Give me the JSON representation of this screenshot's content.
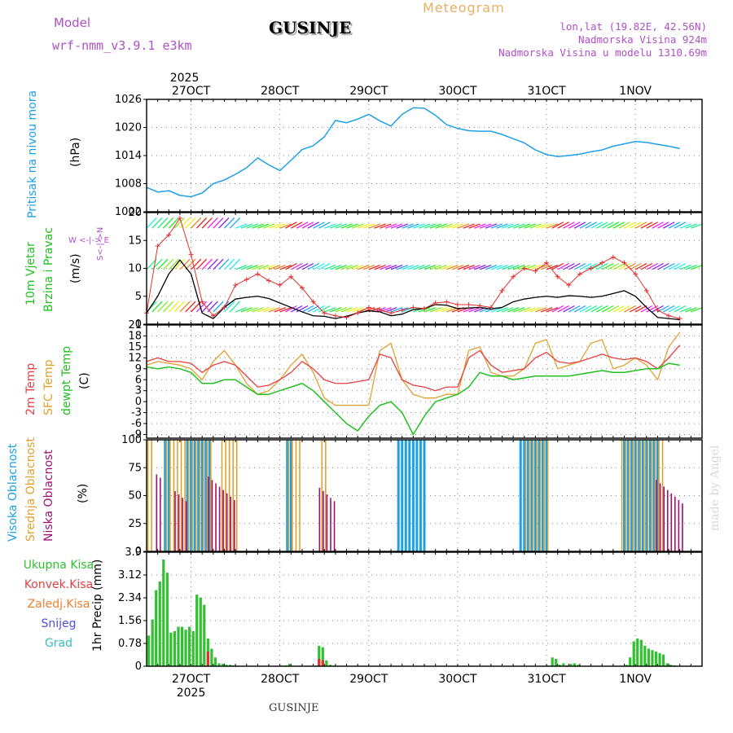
{
  "header": {
    "model_label": "Model",
    "model_name": "wrf-nmm_v3.9.1 e3km",
    "product": "Meteogram",
    "location": "GUSINJE",
    "coords": "lon,lat (19.82E, 42.56N)",
    "elevation": "Nadmorska Visina 924m",
    "model_elevation": "Nadmorska Visina u modelu 1310.69m",
    "credit": "made by Angel",
    "footer_location": "GUSINJE",
    "year_top": "2025",
    "year_bottom": "2025"
  },
  "colors": {
    "pressure": "#1ea0e6",
    "wind_speed": "#000000",
    "gust": "#e03030",
    "temp2m": "#e84040",
    "sfc": "#e0a030",
    "dewpt": "#20c020",
    "high_cloud": "#1ea0e6",
    "mid_cloud": "#e0a030",
    "low_cloud": "#a01070",
    "precip": "#30c030",
    "conv": "#e03030"
  },
  "days": [
    "27OCT",
    "28OCT",
    "29OCT",
    "30OCT",
    "31OCT",
    "1NOV"
  ],
  "chart_data": [
    {
      "type": "line",
      "title": "Pritisak na nivou mora",
      "ylabel": "(hPa)",
      "ylim": [
        1002,
        1026
      ],
      "yticks": [
        "1002",
        "1008",
        "1014",
        "1020",
        "1026"
      ],
      "x_hours": [
        0,
        3,
        6,
        9,
        12,
        15,
        18,
        21,
        24,
        27,
        30,
        33,
        36,
        39,
        42,
        45,
        48,
        51,
        54,
        57,
        60,
        63,
        66,
        69,
        72,
        75,
        78,
        81,
        84,
        87,
        90,
        93,
        96,
        99,
        102,
        105,
        108,
        111,
        114,
        117,
        120,
        123,
        126,
        129,
        132,
        135,
        138,
        141,
        144
      ],
      "series": [
        {
          "name": "pressure",
          "values": [
            1007.2,
            1006.2,
            1006.5,
            1005.5,
            1005.2,
            1006,
            1008,
            1008.8,
            1010,
            1011.4,
            1013.5,
            1012,
            1010.8,
            1013,
            1015.3,
            1016.1,
            1018,
            1021.5,
            1021,
            1021.8,
            1022.8,
            1021.4,
            1020.3,
            1022.8,
            1024.2,
            1024.1,
            1022.6,
            1020.6,
            1019.8,
            1019.3,
            1019.2,
            1019.2,
            1018.5,
            1017.6,
            1016.7,
            1015.2,
            1014.2,
            1013.8,
            1014,
            1014.3,
            1014.8,
            1015.2,
            1016,
            1016.5,
            1017,
            1016.8,
            1016.4,
            1016,
            1015.5
          ]
        }
      ]
    },
    {
      "type": "line",
      "title": "10m Vjetar Brzina i Pravac",
      "ylabel": "(m/s)",
      "ylim": [
        0,
        20
      ],
      "yticks": [
        "0",
        "5",
        "10",
        "15",
        "20"
      ],
      "compass": [
        "N",
        "E",
        "S",
        "W"
      ],
      "compass_text": "W <-|-> E",
      "compass_vertical": "S<-|->N",
      "x_hours": [
        0,
        3,
        6,
        9,
        12,
        15,
        18,
        21,
        24,
        27,
        30,
        33,
        36,
        39,
        42,
        45,
        48,
        51,
        54,
        57,
        60,
        63,
        66,
        69,
        72,
        75,
        78,
        81,
        84,
        87,
        90,
        93,
        96,
        99,
        102,
        105,
        108,
        111,
        114,
        117,
        120,
        123,
        126,
        129,
        132,
        135,
        138,
        141,
        144
      ],
      "series": [
        {
          "name": "wind speed",
          "values": [
            2,
            5,
            9,
            11.5,
            9,
            2,
            1,
            3,
            4.5,
            4.8,
            5,
            4.6,
            3.8,
            3,
            2.2,
            1.5,
            1.4,
            1,
            1.4,
            2,
            2.4,
            2.2,
            1.5,
            1.8,
            2.6,
            2.8,
            3.5,
            3.4,
            2.8,
            2.9,
            3,
            2.7,
            3,
            4,
            4.5,
            4.8,
            5,
            4.8,
            5.1,
            5,
            4.8,
            5,
            5.5,
            6,
            5,
            3,
            1.2,
            1,
            0.8
          ]
        },
        {
          "name": "gust",
          "values": [
            2,
            14,
            16,
            19,
            12.5,
            4,
            1.5,
            3,
            7,
            8,
            9,
            7.8,
            7,
            8.5,
            6.5,
            4,
            2,
            1.5,
            1.2,
            2,
            3,
            2.5,
            2,
            2.5,
            3,
            2.8,
            3.8,
            4,
            3.5,
            3.5,
            3.3,
            3,
            6,
            8.5,
            10,
            9.5,
            11,
            8.5,
            7,
            9,
            10,
            11,
            12,
            11,
            9,
            6,
            2.5,
            1.5,
            1
          ]
        }
      ]
    },
    {
      "type": "line",
      "title": "2m Temp / SFC Temp / dewpt Temp",
      "ylabel": "(C)",
      "ylim": [
        -10,
        21
      ],
      "yticks": [
        "-9",
        "-6",
        "-3",
        "0",
        "3",
        "6",
        "9",
        "12",
        "15",
        "18",
        "21"
      ],
      "x_hours": [
        0,
        3,
        6,
        9,
        12,
        15,
        18,
        21,
        24,
        27,
        30,
        33,
        36,
        39,
        42,
        45,
        48,
        51,
        54,
        57,
        60,
        63,
        66,
        69,
        72,
        75,
        78,
        81,
        84,
        87,
        90,
        93,
        96,
        99,
        102,
        105,
        108,
        111,
        114,
        117,
        120,
        123,
        126,
        129,
        132,
        135,
        138,
        141,
        144
      ],
      "series": [
        {
          "name": "2m Temp",
          "values": [
            11,
            12,
            11,
            11,
            10.5,
            8,
            10,
            11,
            10,
            7,
            4,
            4.5,
            6,
            8,
            11,
            9,
            6,
            5,
            5,
            5.5,
            6,
            13,
            12,
            6,
            4.5,
            4,
            3,
            4,
            4,
            12,
            14,
            10,
            8,
            8.5,
            9,
            12,
            13.5,
            11,
            10.5,
            11,
            12,
            13,
            12,
            11.5,
            12,
            11,
            9,
            12,
            15.5
          ]
        },
        {
          "name": "SFC Temp",
          "values": [
            10,
            11,
            10.5,
            10,
            9,
            6,
            11,
            14,
            10,
            5,
            2,
            3,
            6,
            10,
            13,
            8,
            1,
            -1,
            -1,
            -1,
            -1,
            14,
            16,
            6,
            2,
            1,
            1,
            2,
            2,
            14,
            15,
            8,
            7,
            7,
            9,
            16,
            17,
            9,
            10,
            11,
            16,
            17,
            9,
            10,
            12,
            10,
            6,
            15,
            19
          ]
        },
        {
          "name": "dewpt Temp",
          "values": [
            9.5,
            9,
            9.5,
            9,
            8,
            5,
            5,
            6,
            6,
            4,
            2,
            2,
            3,
            4,
            5,
            3,
            0,
            -3,
            -6,
            -8,
            -4,
            -1,
            0,
            -3,
            -9,
            -4,
            0,
            1,
            2,
            4,
            8,
            7,
            7,
            6,
            6.5,
            7,
            7,
            7,
            7,
            7.5,
            8,
            8.5,
            8,
            8,
            8.5,
            9,
            9,
            10.5,
            10
          ]
        }
      ]
    },
    {
      "type": "bar",
      "title": "Visoka Oblacnost / Srednja Oblacnost / Niska Oblacnost",
      "ylabel": "(%)",
      "ylim": [
        0,
        100
      ],
      "yticks": [
        "0",
        "25",
        "50",
        "75",
        "100"
      ],
      "series": [
        {
          "name": "Visoka Oblacnost",
          "active_ranges": [
            [
              5,
              6
            ],
            [
              11,
              17
            ],
            [
              38,
              39
            ],
            [
              68,
              75
            ],
            [
              101,
              108
            ],
            [
              129,
              138
            ]
          ],
          "values_level": 100
        },
        {
          "name": "Srednja Oblacnost",
          "active_ranges": [
            [
              0,
              1
            ],
            [
              5,
              17
            ],
            [
              20,
              24
            ],
            [
              38,
              41
            ],
            [
              47,
              48
            ],
            [
              102,
              108
            ],
            [
              128,
              139
            ]
          ],
          "values_level": 100
        },
        {
          "name": "Niska Oblacnost",
          "active_ranges": [
            [
              2,
              3
            ],
            [
              7,
              10
            ],
            [
              16,
              20
            ],
            [
              21,
              23
            ],
            [
              46,
              50
            ],
            [
              137,
              144
            ]
          ],
          "values_level": 55
        }
      ]
    },
    {
      "type": "bar",
      "title": "1hr Precip",
      "ylabel": "1hr Precip (mm)",
      "ylim": [
        0,
        3.9
      ],
      "yticks": [
        "0",
        "0.78",
        "1.56",
        "2.34",
        "3.12",
        "3.9"
      ],
      "legend": [
        "Ukupna Kisa",
        "Konvek.Kisa",
        "Zaledj.Kisa",
        "Snijeg",
        "Grad"
      ],
      "x_hours": [
        0,
        1,
        2,
        3,
        4,
        5,
        6,
        7,
        8,
        9,
        10,
        11,
        12,
        13,
        14,
        15,
        16,
        17,
        18,
        19,
        20,
        21,
        22,
        23,
        24,
        36,
        37,
        38,
        39,
        40,
        41,
        42,
        43,
        44,
        45,
        46,
        47,
        48,
        49,
        50,
        108,
        109,
        110,
        111,
        112,
        113,
        114,
        115,
        116,
        129,
        130,
        131,
        132,
        133,
        134,
        135,
        136,
        137,
        138,
        139,
        140,
        141,
        142
      ],
      "values": [
        1.05,
        1.6,
        2.6,
        2.9,
        3.65,
        3.2,
        1.15,
        1.2,
        1.35,
        1.35,
        1.25,
        1.35,
        1.2,
        2.45,
        2.35,
        2.1,
        0.95,
        0.6,
        0.3,
        0.1,
        0.08,
        0.05,
        0.05,
        0.03,
        0.02,
        0.02,
        0.03,
        0.08,
        0.02,
        0.01,
        0.02,
        0.01,
        0.02,
        0.02,
        0.02,
        0.7,
        0.65,
        0.2,
        0.05,
        0.02,
        0.02,
        0.3,
        0.25,
        0.05,
        0.1,
        0.03,
        0.08,
        0.1,
        0.05,
        0.05,
        0.3,
        0.85,
        0.95,
        0.9,
        0.7,
        0.6,
        0.55,
        0.5,
        0.45,
        0.4,
        0.1,
        0.05,
        0.03
      ],
      "conv_values": [
        0,
        0,
        0,
        0,
        0,
        0,
        0,
        0,
        0,
        0,
        0,
        0,
        0,
        0,
        0,
        0,
        0.5,
        0,
        0,
        0,
        0,
        0,
        0,
        0,
        0,
        0,
        0,
        0,
        0,
        0,
        0,
        0,
        0,
        0,
        0,
        0.25,
        0.2,
        0,
        0,
        0,
        0,
        0,
        0,
        0,
        0,
        0,
        0,
        0,
        0,
        0,
        0,
        0,
        0,
        0,
        0,
        0,
        0,
        0,
        0,
        0,
        0,
        0,
        0
      ]
    }
  ]
}
